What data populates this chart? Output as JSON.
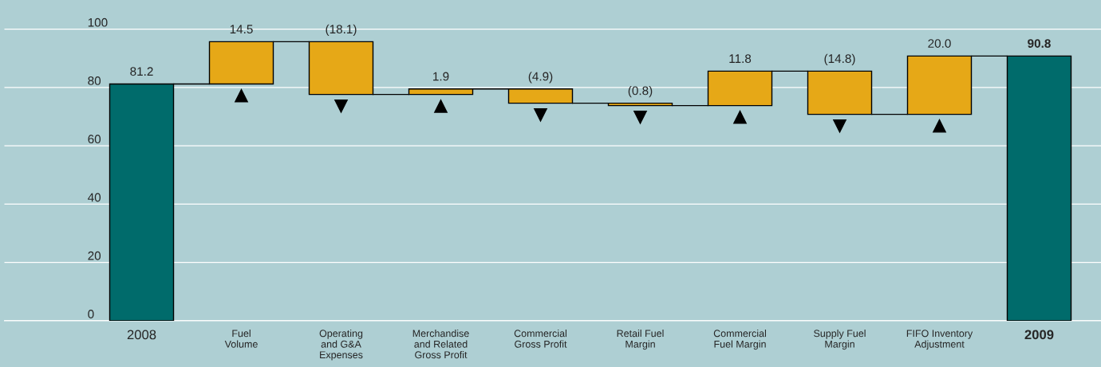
{
  "chart_data": {
    "type": "bar",
    "categories": [
      "2008",
      "Fuel\nVolume",
      "Operating\nand G&A\nExpenses",
      "Merchandise\nand Related\nGross Profit",
      "Commercial\nGross Profit",
      "Retail Fuel\nMargin",
      "Commercial\nFuel Margin",
      "Supply Fuel\nMargin",
      "FIFO Inventory\nAdjustment",
      "2009"
    ],
    "values": [
      81.2,
      14.5,
      -18.1,
      1.9,
      -4.9,
      -0.8,
      11.8,
      -14.8,
      20.0,
      90.8
    ],
    "base": [
      0,
      81.2,
      95.7,
      77.6,
      79.5,
      74.6,
      73.8,
      85.6,
      70.8,
      0
    ],
    "colors": [
      "#006b6b",
      "#e6a817",
      "#e6a817",
      "#e6a817",
      "#e6a817",
      "#e6a817",
      "#e6a817",
      "#e6a817",
      "#e6a817",
      "#006b6b"
    ],
    "value_labels": [
      "81.2",
      "14.5",
      "(18.1)",
      "1.9",
      "(4.9)",
      "(0.8)",
      "11.8",
      "(14.8)",
      "20.0",
      "90.8"
    ],
    "ylim": [
      0,
      110
    ],
    "yticks": [
      0,
      20,
      40,
      60,
      80,
      100
    ],
    "grid": "y"
  }
}
